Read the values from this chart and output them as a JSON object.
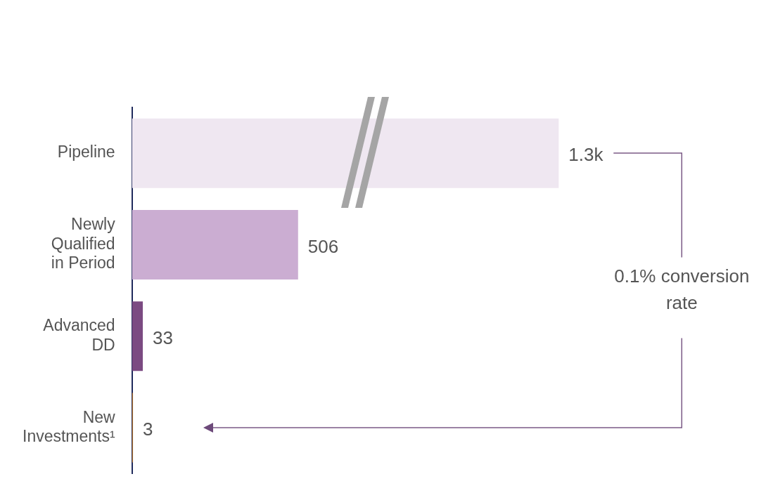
{
  "chart_data": {
    "type": "bar",
    "orientation": "horizontal",
    "categories": [
      "Pipeline",
      "Newly Qualified in Period",
      "Advanced DD",
      "New Investments¹"
    ],
    "values": [
      1300,
      506,
      33,
      3
    ],
    "colors": [
      "#efe7f1",
      "#cbadd2",
      "#7b4a82",
      "#b0702c"
    ],
    "value_labels": [
      "1.3k",
      "506",
      "33",
      "3"
    ],
    "tick_labels": "y",
    "legend": false,
    "annotations": [
      "0.1% conversion rate"
    ]
  }
}
